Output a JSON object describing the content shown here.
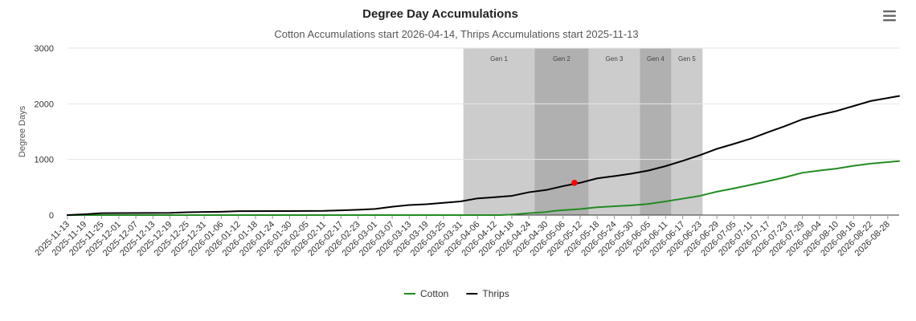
{
  "menu": {
    "icon": "hamburger-menu-icon"
  },
  "chart_data": {
    "type": "line",
    "title": "Degree Day Accumulations",
    "subtitle": "Cotton Accumulations start 2026-04-14, Thrips Accumulations start 2025-11-13",
    "ylabel": "Degree Days",
    "xlabel": "",
    "ylim": [
      0,
      3000
    ],
    "yticks": [
      0,
      1000,
      2000,
      3000
    ],
    "grid": true,
    "legend_position": "bottom-center",
    "x_categories": [
      "2025-11-13",
      "2025-11-19",
      "2025-11-25",
      "2025-12-01",
      "2025-12-07",
      "2025-12-13",
      "2025-12-19",
      "2025-12-25",
      "2025-12-31",
      "2026-01-06",
      "2026-01-12",
      "2026-01-18",
      "2026-01-24",
      "2026-01-30",
      "2026-02-05",
      "2026-02-11",
      "2026-02-17",
      "2026-02-23",
      "2026-03-01",
      "2026-03-07",
      "2026-03-13",
      "2026-03-19",
      "2026-03-25",
      "2026-03-31",
      "2026-04-06",
      "2026-04-12",
      "2026-04-18",
      "2026-04-24",
      "2026-04-30",
      "2026-05-06",
      "2026-05-12",
      "2026-05-18",
      "2026-05-24",
      "2026-05-30",
      "2026-06-05",
      "2026-06-11",
      "2026-06-17",
      "2026-06-23",
      "2026-06-29",
      "2026-07-05",
      "2026-07-11",
      "2026-07-17",
      "2026-07-23",
      "2026-07-29",
      "2026-08-04",
      "2026-08-10",
      "2026-08-16",
      "2026-08-22",
      "2026-08-28"
    ],
    "x_end": "2026-09-01",
    "bands": [
      {
        "label": "Gen 1",
        "start": "2026-04-01",
        "end": "2026-04-26",
        "color": "#cccccc"
      },
      {
        "label": "Gen 2",
        "start": "2026-04-26",
        "end": "2026-05-15",
        "color": "#b0b0b0"
      },
      {
        "label": "Gen 3",
        "start": "2026-05-15",
        "end": "2026-06-02",
        "color": "#cccccc"
      },
      {
        "label": "Gen 4",
        "start": "2026-06-02",
        "end": "2026-06-13",
        "color": "#b0b0b0"
      },
      {
        "label": "Gen 5",
        "start": "2026-06-13",
        "end": "2026-06-24",
        "color": "#cccccc"
      }
    ],
    "series": [
      {
        "name": "Cotton",
        "color": "#228B22",
        "points": [
          {
            "x": "2025-11-13",
            "y": 0
          },
          {
            "x": "2026-04-14",
            "y": 0
          },
          {
            "x": "2026-04-18",
            "y": 10
          },
          {
            "x": "2026-04-24",
            "y": 35
          },
          {
            "x": "2026-04-30",
            "y": 55
          },
          {
            "x": "2026-05-03",
            "y": 75
          },
          {
            "x": "2026-05-06",
            "y": 88
          },
          {
            "x": "2026-05-12",
            "y": 108
          },
          {
            "x": "2026-05-18",
            "y": 140
          },
          {
            "x": "2026-05-24",
            "y": 158
          },
          {
            "x": "2026-05-30",
            "y": 175
          },
          {
            "x": "2026-06-05",
            "y": 200
          },
          {
            "x": "2026-06-11",
            "y": 245
          },
          {
            "x": "2026-06-17",
            "y": 295
          },
          {
            "x": "2026-06-23",
            "y": 345
          },
          {
            "x": "2026-06-29",
            "y": 420
          },
          {
            "x": "2026-07-05",
            "y": 480
          },
          {
            "x": "2026-07-11",
            "y": 545
          },
          {
            "x": "2026-07-17",
            "y": 610
          },
          {
            "x": "2026-07-23",
            "y": 680
          },
          {
            "x": "2026-07-29",
            "y": 760
          },
          {
            "x": "2026-08-04",
            "y": 800
          },
          {
            "x": "2026-08-10",
            "y": 835
          },
          {
            "x": "2026-08-16",
            "y": 885
          },
          {
            "x": "2026-08-22",
            "y": 925
          },
          {
            "x": "2026-09-01",
            "y": 970
          }
        ]
      },
      {
        "name": "Thrips",
        "color": "#000000",
        "points": [
          {
            "x": "2025-11-13",
            "y": 0
          },
          {
            "x": "2025-11-19",
            "y": 15
          },
          {
            "x": "2025-11-25",
            "y": 35
          },
          {
            "x": "2025-12-19",
            "y": 40
          },
          {
            "x": "2025-12-25",
            "y": 50
          },
          {
            "x": "2026-01-06",
            "y": 60
          },
          {
            "x": "2026-01-12",
            "y": 70
          },
          {
            "x": "2026-01-30",
            "y": 72
          },
          {
            "x": "2026-02-11",
            "y": 75
          },
          {
            "x": "2026-02-17",
            "y": 85
          },
          {
            "x": "2026-02-23",
            "y": 95
          },
          {
            "x": "2026-03-01",
            "y": 110
          },
          {
            "x": "2026-03-07",
            "y": 150
          },
          {
            "x": "2026-03-13",
            "y": 180
          },
          {
            "x": "2026-03-19",
            "y": 195
          },
          {
            "x": "2026-03-25",
            "y": 220
          },
          {
            "x": "2026-03-31",
            "y": 245
          },
          {
            "x": "2026-04-06",
            "y": 300
          },
          {
            "x": "2026-04-12",
            "y": 320
          },
          {
            "x": "2026-04-18",
            "y": 345
          },
          {
            "x": "2026-04-24",
            "y": 410
          },
          {
            "x": "2026-04-30",
            "y": 450
          },
          {
            "x": "2026-05-06",
            "y": 520
          },
          {
            "x": "2026-05-12",
            "y": 580
          },
          {
            "x": "2026-05-18",
            "y": 660
          },
          {
            "x": "2026-05-24",
            "y": 700
          },
          {
            "x": "2026-05-30",
            "y": 745
          },
          {
            "x": "2026-06-05",
            "y": 800
          },
          {
            "x": "2026-06-11",
            "y": 880
          },
          {
            "x": "2026-06-17",
            "y": 975
          },
          {
            "x": "2026-06-23",
            "y": 1075
          },
          {
            "x": "2026-06-29",
            "y": 1190
          },
          {
            "x": "2026-07-05",
            "y": 1280
          },
          {
            "x": "2026-07-11",
            "y": 1375
          },
          {
            "x": "2026-07-17",
            "y": 1490
          },
          {
            "x": "2026-07-23",
            "y": 1600
          },
          {
            "x": "2026-07-29",
            "y": 1720
          },
          {
            "x": "2026-08-04",
            "y": 1800
          },
          {
            "x": "2026-08-10",
            "y": 1870
          },
          {
            "x": "2026-08-16",
            "y": 1960
          },
          {
            "x": "2026-08-22",
            "y": 2050
          },
          {
            "x": "2026-09-01",
            "y": 2140
          }
        ]
      }
    ],
    "markers": [
      {
        "series": "Thrips",
        "x": "2026-05-10",
        "y": 580,
        "color": "#ff0000"
      }
    ]
  }
}
